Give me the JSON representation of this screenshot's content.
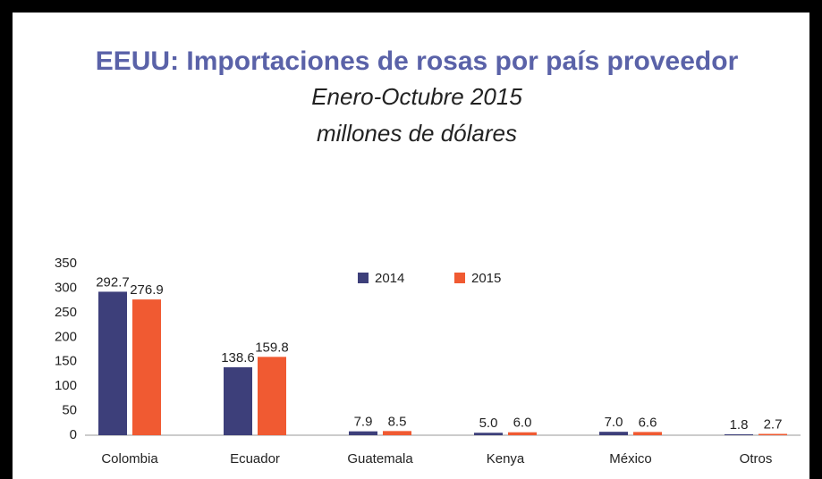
{
  "chart_data": {
    "type": "bar",
    "title": "EEUU: Importaciones de rosas por país proveedor",
    "subtitle": [
      "Enero-Octubre 2015",
      "millones de dólares"
    ],
    "categories": [
      "Colombia",
      "Ecuador",
      "Guatemala",
      "Kenya",
      "México",
      "Otros"
    ],
    "series": [
      {
        "name": "2014",
        "color": "#3d3f7a",
        "values": [
          292.7,
          138.6,
          7.9,
          5.0,
          7.0,
          1.8
        ],
        "value_labels": [
          "292.7",
          "138.6",
          "7.9",
          "5.0",
          "7.0",
          "1.8"
        ]
      },
      {
        "name": "2015",
        "color": "#f05a32",
        "values": [
          276.9,
          159.8,
          8.5,
          6.0,
          6.6,
          2.7
        ],
        "value_labels": [
          "276.9",
          "159.8",
          "8.5",
          "6.0",
          "6.6",
          "2.7"
        ]
      }
    ],
    "ylim": [
      0,
      350
    ],
    "yticks": [
      0,
      50,
      100,
      150,
      200,
      250,
      300,
      350
    ],
    "grid": false,
    "legend": "top"
  }
}
